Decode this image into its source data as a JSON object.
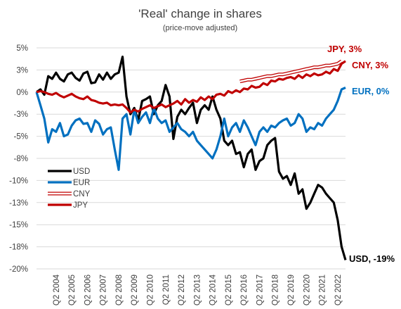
{
  "chart_data": {
    "type": "line",
    "title": "'Real' change in shares",
    "subtitle": "(price-move adjusted)",
    "ylim": [
      -20,
      5
    ],
    "yticks": [
      {
        "value": 5,
        "label": "5%"
      },
      {
        "value": 2.5,
        "label": "3%"
      },
      {
        "value": 0,
        "label": "0%"
      },
      {
        "value": -2.5,
        "label": "-3%"
      },
      {
        "value": -5,
        "label": "-5%"
      },
      {
        "value": -7.5,
        "label": "-8%"
      },
      {
        "value": -10,
        "label": "-10%"
      },
      {
        "value": -12.5,
        "label": "-13%"
      },
      {
        "value": -15,
        "label": "-15%"
      },
      {
        "value": -17.5,
        "label": "-18%"
      },
      {
        "value": -20,
        "label": "-20%"
      }
    ],
    "xlim": [
      2003.0,
      2022.75
    ],
    "xticks": [
      {
        "value": 2004.25,
        "label": "Q2 2004"
      },
      {
        "value": 2005.25,
        "label": "Q2 2005"
      },
      {
        "value": 2006.25,
        "label": "Q2 2006"
      },
      {
        "value": 2007.25,
        "label": "Q2 2007"
      },
      {
        "value": 2008.25,
        "label": "Q2 2008"
      },
      {
        "value": 2009.25,
        "label": "Q2 2009"
      },
      {
        "value": 2010.25,
        "label": "Q2 2010"
      },
      {
        "value": 2011.25,
        "label": "Q2 2011"
      },
      {
        "value": 2012.25,
        "label": "Q2 2012"
      },
      {
        "value": 2013.25,
        "label": "Q2 2013"
      },
      {
        "value": 2014.25,
        "label": "Q2 2014"
      },
      {
        "value": 2015.25,
        "label": "Q2 2015"
      },
      {
        "value": 2016.25,
        "label": "Q2 2016"
      },
      {
        "value": 2017.25,
        "label": "Q2 2017"
      },
      {
        "value": 2018.25,
        "label": "Q2 2018"
      },
      {
        "value": 2019.25,
        "label": "Q2 2019"
      },
      {
        "value": 2020.25,
        "label": "Q2 2020"
      },
      {
        "value": 2021.25,
        "label": "Q2 2021"
      },
      {
        "value": 2022.25,
        "label": "Q2 2022"
      }
    ],
    "grid": "horizontal",
    "legend_position": "bottom-left",
    "series": [
      {
        "name": "USD",
        "color": "#000000",
        "style": "solid",
        "end_label": "USD, -19%",
        "x": [
          2003.0,
          2003.25,
          2003.5,
          2003.75,
          2004.0,
          2004.25,
          2004.5,
          2004.75,
          2005.0,
          2005.25,
          2005.5,
          2005.75,
          2006.0,
          2006.25,
          2006.5,
          2006.75,
          2007.0,
          2007.25,
          2007.5,
          2007.75,
          2008.0,
          2008.25,
          2008.5,
          2008.75,
          2009.0,
          2009.25,
          2009.5,
          2009.75,
          2010.0,
          2010.25,
          2010.5,
          2010.75,
          2011.0,
          2011.25,
          2011.5,
          2011.75,
          2012.0,
          2012.25,
          2012.5,
          2012.75,
          2013.0,
          2013.25,
          2013.5,
          2013.75,
          2014.0,
          2014.25,
          2014.5,
          2014.75,
          2015.0,
          2015.25,
          2015.5,
          2015.75,
          2016.0,
          2016.25,
          2016.5,
          2016.75,
          2017.0,
          2017.25,
          2017.5,
          2017.75,
          2018.0,
          2018.25,
          2018.5,
          2018.75,
          2019.0,
          2019.25,
          2019.5,
          2019.75,
          2020.0,
          2020.25,
          2020.5,
          2020.75,
          2021.0,
          2021.25,
          2021.5,
          2021.75,
          2022.0,
          2022.25,
          2022.5,
          2022.75
        ],
        "y": [
          0.0,
          0.3,
          -0.3,
          1.8,
          1.5,
          2.2,
          1.5,
          1.2,
          2.0,
          2.2,
          1.6,
          1.3,
          2.1,
          2.3,
          1.0,
          1.1,
          2.0,
          1.4,
          2.2,
          1.5,
          2.0,
          2.2,
          4.0,
          -0.5,
          -2.5,
          -1.8,
          -3.2,
          -1.0,
          -0.8,
          -0.5,
          -2.5,
          -1.5,
          -1.0,
          0.8,
          -0.5,
          -5.3,
          -2.8,
          -2.0,
          -2.5,
          -1.8,
          -1.2,
          -3.5,
          -2.0,
          -1.5,
          -2.0,
          -0.5,
          -2.0,
          -3.0,
          -5.5,
          -6.0,
          -5.5,
          -7.0,
          -6.8,
          -8.5,
          -7.0,
          -6.5,
          -8.8,
          -7.8,
          -7.5,
          -6.0,
          -5.5,
          -5.2,
          -9.0,
          -9.8,
          -9.5,
          -10.5,
          -9.2,
          -11.5,
          -11.0,
          -13.2,
          -12.5,
          -11.5,
          -10.5,
          -10.8,
          -11.5,
          -12.0,
          -12.5,
          -14.5,
          -17.5,
          -19.0
        ]
      },
      {
        "name": "EUR",
        "color": "#0070C0",
        "style": "solid",
        "end_label": "EUR, 0%",
        "x": [
          2003.0,
          2003.25,
          2003.5,
          2003.75,
          2004.0,
          2004.25,
          2004.5,
          2004.75,
          2005.0,
          2005.25,
          2005.5,
          2005.75,
          2006.0,
          2006.25,
          2006.5,
          2006.75,
          2007.0,
          2007.25,
          2007.5,
          2007.75,
          2008.0,
          2008.25,
          2008.5,
          2008.75,
          2009.0,
          2009.25,
          2009.5,
          2009.75,
          2010.0,
          2010.25,
          2010.5,
          2010.75,
          2011.0,
          2011.25,
          2011.5,
          2011.75,
          2012.0,
          2012.25,
          2012.5,
          2012.75,
          2013.0,
          2013.25,
          2013.5,
          2013.75,
          2014.0,
          2014.25,
          2014.5,
          2014.75,
          2015.0,
          2015.25,
          2015.5,
          2015.75,
          2016.0,
          2016.25,
          2016.5,
          2016.75,
          2017.0,
          2017.25,
          2017.5,
          2017.75,
          2018.0,
          2018.25,
          2018.5,
          2018.75,
          2019.0,
          2019.25,
          2019.5,
          2019.75,
          2020.0,
          2020.25,
          2020.5,
          2020.75,
          2021.0,
          2021.25,
          2021.5,
          2021.75,
          2022.0,
          2022.25,
          2022.5,
          2022.75
        ],
        "y": [
          0.0,
          -1.5,
          -3.0,
          -5.7,
          -4.2,
          -4.5,
          -3.5,
          -5.0,
          -4.8,
          -3.8,
          -3.2,
          -3.0,
          -3.6,
          -3.5,
          -4.5,
          -3.2,
          -3.6,
          -4.8,
          -4.2,
          -4.0,
          -6.5,
          -8.8,
          -3.0,
          -2.5,
          -4.8,
          -2.0,
          -3.5,
          -2.8,
          -2.3,
          -3.5,
          -1.8,
          -3.0,
          -3.5,
          -3.2,
          -4.5,
          -4.0,
          -3.5,
          -4.2,
          -4.5,
          -5.0,
          -4.5,
          -5.5,
          -6.0,
          -6.5,
          -7.0,
          -7.5,
          -6.5,
          -5.0,
          -3.0,
          -5.0,
          -4.0,
          -3.5,
          -4.5,
          -3.2,
          -4.0,
          -5.0,
          -6.0,
          -4.5,
          -4.0,
          -4.5,
          -3.8,
          -4.0,
          -3.5,
          -3.2,
          -3.0,
          -3.8,
          -3.5,
          -2.5,
          -3.0,
          -4.5,
          -4.0,
          -4.2,
          -3.5,
          -3.8,
          -3.0,
          -2.5,
          -2.0,
          -1.0,
          0.3,
          0.5
        ]
      },
      {
        "name": "CNY",
        "color": "#C00000",
        "style": "hollow",
        "end_label": "CNY, 3%",
        "x": [
          2016.0,
          2016.25,
          2016.5,
          2016.75,
          2017.0,
          2017.25,
          2017.5,
          2017.75,
          2018.0,
          2018.25,
          2018.5,
          2018.75,
          2019.0,
          2019.25,
          2019.5,
          2019.75,
          2020.0,
          2020.25,
          2020.5,
          2020.75,
          2021.0,
          2021.25,
          2021.5,
          2021.75,
          2022.0,
          2022.25,
          2022.5
        ],
        "y": [
          1.2,
          1.3,
          1.4,
          1.4,
          1.5,
          1.6,
          1.7,
          1.8,
          1.8,
          1.9,
          2.0,
          2.0,
          2.1,
          2.2,
          2.3,
          2.4,
          2.5,
          2.6,
          2.7,
          2.8,
          2.8,
          2.9,
          3.0,
          3.0,
          3.1,
          3.2,
          3.5
        ]
      },
      {
        "name": "JPY",
        "color": "#C00000",
        "style": "solid",
        "end_label": "JPY, 3%",
        "x": [
          2003.0,
          2003.25,
          2003.5,
          2003.75,
          2004.0,
          2004.25,
          2004.5,
          2004.75,
          2005.0,
          2005.25,
          2005.5,
          2005.75,
          2006.0,
          2006.25,
          2006.5,
          2006.75,
          2007.0,
          2007.25,
          2007.5,
          2007.75,
          2008.0,
          2008.25,
          2008.5,
          2008.75,
          2009.0,
          2009.25,
          2009.5,
          2009.75,
          2010.0,
          2010.25,
          2010.5,
          2010.75,
          2011.0,
          2011.25,
          2011.5,
          2011.75,
          2012.0,
          2012.25,
          2012.5,
          2012.75,
          2013.0,
          2013.25,
          2013.5,
          2013.75,
          2014.0,
          2014.25,
          2014.5,
          2014.75,
          2015.0,
          2015.25,
          2015.5,
          2015.75,
          2016.0,
          2016.25,
          2016.5,
          2016.75,
          2017.0,
          2017.25,
          2017.5,
          2017.75,
          2018.0,
          2018.25,
          2018.5,
          2018.75,
          2019.0,
          2019.25,
          2019.5,
          2019.75,
          2020.0,
          2020.25,
          2020.5,
          2020.75,
          2021.0,
          2021.25,
          2021.5,
          2021.75,
          2022.0,
          2022.25,
          2022.5,
          2022.75
        ],
        "y": [
          0.0,
          0.1,
          0.0,
          -0.2,
          -0.3,
          -0.1,
          -0.4,
          -0.6,
          -0.4,
          -0.2,
          -0.5,
          -0.7,
          -0.8,
          -0.5,
          -0.9,
          -1.0,
          -1.2,
          -1.3,
          -1.2,
          -1.5,
          -1.4,
          -1.5,
          -1.4,
          -1.8,
          -2.3,
          -2.0,
          -2.2,
          -1.9,
          -1.7,
          -1.5,
          -1.8,
          -1.6,
          -1.4,
          -1.7,
          -1.5,
          -1.3,
          -1.0,
          -1.4,
          -0.8,
          -1.2,
          -0.9,
          -1.1,
          -0.6,
          -0.9,
          -0.5,
          -0.8,
          -0.3,
          -0.2,
          -0.4,
          0.1,
          -0.1,
          0.2,
          0.0,
          0.4,
          0.3,
          0.7,
          0.5,
          0.6,
          1.0,
          0.8,
          1.3,
          1.2,
          1.5,
          1.4,
          1.6,
          1.7,
          1.5,
          1.9,
          1.6,
          2.0,
          1.8,
          2.1,
          1.9,
          2.0,
          2.3,
          2.1,
          2.6,
          2.4,
          3.2,
          3.5
        ]
      }
    ]
  }
}
